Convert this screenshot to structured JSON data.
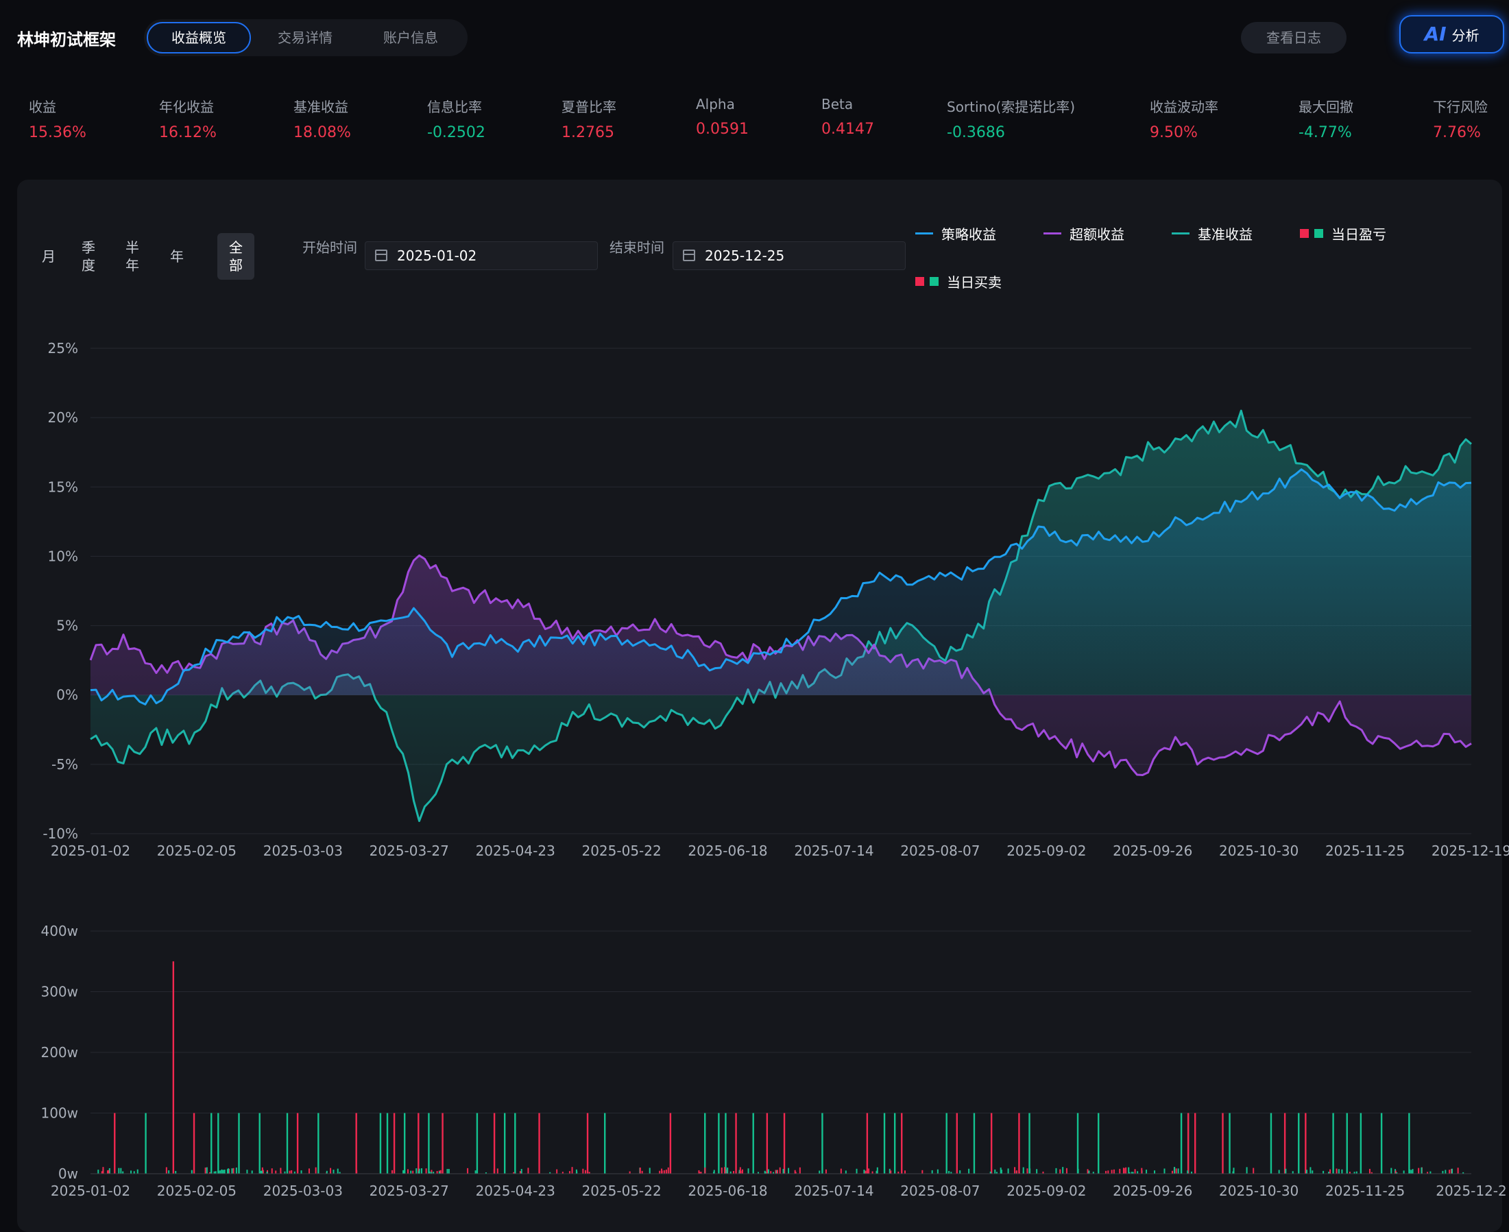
{
  "header": {
    "app_title": "林坤初试框架",
    "tabs": [
      {
        "label": "收益概览",
        "active": true
      },
      {
        "label": "交易详情",
        "active": false
      },
      {
        "label": "账户信息",
        "active": false
      }
    ],
    "log_button": "查看日志",
    "ai_button_mark": "AI",
    "ai_button_label": "分析"
  },
  "metrics": [
    {
      "label": "收益",
      "value": "15.36%",
      "tone": "pos"
    },
    {
      "label": "年化收益",
      "value": "16.12%",
      "tone": "pos"
    },
    {
      "label": "基准收益",
      "value": "18.08%",
      "tone": "pos"
    },
    {
      "label": "信息比率",
      "value": "-0.2502",
      "tone": "neg"
    },
    {
      "label": "夏普比率",
      "value": "1.2765",
      "tone": "pos"
    },
    {
      "label": "Alpha",
      "value": "0.0591",
      "tone": "pos"
    },
    {
      "label": "Beta",
      "value": "0.4147",
      "tone": "pos"
    },
    {
      "label": "Sortino(索提诺比率)",
      "value": "-0.3686",
      "tone": "neg"
    },
    {
      "label": "收益波动率",
      "value": "9.50%",
      "tone": "pos"
    },
    {
      "label": "最大回撤",
      "value": "-4.77%",
      "tone": "neg"
    },
    {
      "label": "下行风险",
      "value": "7.76%",
      "tone": "pos"
    }
  ],
  "filters": {
    "periods": [
      {
        "label": "月",
        "active": false
      },
      {
        "label": "季度",
        "active": false
      },
      {
        "label": "半年",
        "active": false
      },
      {
        "label": "年",
        "active": false
      },
      {
        "label": "全部",
        "active": true
      }
    ],
    "start_label": "开始时间",
    "start_value": "2025-01-02",
    "end_label": "结束时间",
    "end_value": "2025-12-25"
  },
  "legend": [
    {
      "name": "策略收益",
      "kind": "line",
      "color": "#1fa0f0"
    },
    {
      "name": "超额收益",
      "kind": "line",
      "color": "#a24bdc"
    },
    {
      "name": "基准收益",
      "kind": "line",
      "color": "#1cb5a8"
    },
    {
      "name": "当日盈亏",
      "kind": "squares",
      "colors": [
        "#f0284f",
        "#13c28f"
      ]
    },
    {
      "name": "当日买卖",
      "kind": "squares",
      "colors": [
        "#f0284f",
        "#13c28f"
      ]
    }
  ],
  "colors": {
    "strategy": "#1fa0f0",
    "excess": "#a24bdc",
    "benchmark": "#1cb5a8",
    "buy": "#f0284f",
    "sell": "#13c28f",
    "grid": "#262930",
    "axis_text": "#aab0ba"
  },
  "chart_data": [
    {
      "type": "line",
      "ylim": [
        -10,
        25
      ],
      "y_ticks": [
        25,
        20,
        15,
        10,
        5,
        0,
        -5,
        -10
      ],
      "y_tick_labels": [
        "25%",
        "20%",
        "15%",
        "10%",
        "5%",
        "0%",
        "-5%",
        "-10%"
      ],
      "x_tick_labels": [
        "2025-01-02",
        "2025-02-05",
        "2025-03-03",
        "2025-03-27",
        "2025-04-23",
        "2025-05-22",
        "2025-06-18",
        "2025-07-14",
        "2025-08-07",
        "2025-09-02",
        "2025-09-26",
        "2025-10-30",
        "2025-11-25",
        "2025-12-19"
      ],
      "x": [
        "2025-01-02",
        "2025-01-15",
        "2025-01-28",
        "2025-02-05",
        "2025-02-14",
        "2025-02-24",
        "2025-03-03",
        "2025-03-10",
        "2025-03-18",
        "2025-03-25",
        "2025-03-27",
        "2025-04-01",
        "2025-04-08",
        "2025-04-15",
        "2025-04-23",
        "2025-05-06",
        "2025-05-14",
        "2025-05-22",
        "2025-05-30",
        "2025-06-10",
        "2025-06-18",
        "2025-06-26",
        "2025-07-07",
        "2025-07-14",
        "2025-07-21",
        "2025-07-30",
        "2025-08-07",
        "2025-08-15",
        "2025-08-25",
        "2025-09-02",
        "2025-09-10",
        "2025-09-18",
        "2025-09-26",
        "2025-10-13",
        "2025-10-22",
        "2025-10-30",
        "2025-11-07",
        "2025-11-17",
        "2025-11-25",
        "2025-12-03",
        "2025-12-11",
        "2025-12-19",
        "2025-12-25"
      ],
      "series": [
        {
          "name": "策略收益",
          "values": [
            0,
            0,
            -0.5,
            2,
            4,
            4.5,
            5.5,
            5,
            5,
            5,
            6,
            3,
            4,
            3.5,
            4,
            4,
            4,
            4,
            3,
            2,
            2.5,
            3.5,
            5,
            7,
            8.5,
            8,
            8.5,
            9,
            10.5,
            12,
            11,
            11.5,
            11,
            12.5,
            13,
            14,
            15,
            16,
            14.5,
            14,
            13.5,
            15,
            15.3
          ]
        },
        {
          "name": "超额收益",
          "values": [
            3,
            4,
            2,
            2,
            3.5,
            4,
            5.5,
            3,
            4,
            5,
            10.5,
            7.5,
            7,
            6.5,
            5,
            4.5,
            4.5,
            5,
            4.5,
            3.5,
            3,
            3.5,
            4,
            4,
            3,
            2.5,
            2.5,
            1,
            -2,
            -3,
            -4,
            -4.5,
            -5.5,
            -3.5,
            -5,
            -4.5,
            -3,
            -2,
            -1,
            -3,
            -4,
            -3,
            -3.5
          ]
        },
        {
          "name": "基准收益",
          "values": [
            -3,
            -4.5,
            -3,
            -3,
            0,
            0.5,
            0.5,
            0,
            1.5,
            -1,
            -8.5,
            -5,
            -4,
            -4,
            -3,
            -1,
            -2,
            -2,
            -1.5,
            -2,
            0,
            0.5,
            1,
            2,
            4,
            5,
            3,
            4.5,
            9.5,
            14.5,
            15,
            16,
            17.5,
            18,
            19,
            20,
            18,
            17,
            14,
            15,
            16,
            16.5,
            18.1
          ]
        }
      ]
    },
    {
      "type": "bar",
      "ylim": [
        0,
        400
      ],
      "y_ticks": [
        0,
        100,
        200,
        300,
        400
      ],
      "y_tick_labels": [
        "0w",
        "100w",
        "200w",
        "300w",
        "400w"
      ],
      "x_tick_labels": [
        "2025-01-02",
        "2025-02-05",
        "2025-03-03",
        "2025-03-27",
        "2025-04-23",
        "2025-05-22",
        "2025-06-18",
        "2025-07-14",
        "2025-08-07",
        "2025-09-02",
        "2025-09-26",
        "2025-10-30",
        "2025-11-25",
        "2025-12-2"
      ],
      "series": [
        {
          "name": "买入",
          "points": [
            [
              0.08,
              100
            ],
            [
              0.175,
              100
            ],
            [
              0.185,
              100
            ],
            [
              0.215,
              100
            ],
            [
              0.245,
              100
            ],
            [
              0.285,
              100
            ],
            [
              0.33,
              100
            ],
            [
              0.42,
              100
            ],
            [
              0.43,
              100
            ],
            [
              0.455,
              100
            ],
            [
              0.49,
              100
            ],
            [
              0.56,
              100
            ],
            [
              0.6,
              100
            ],
            [
              0.615,
              100
            ],
            [
              0.745,
              100
            ],
            [
              0.89,
              100
            ],
            [
              0.91,
              100
            ],
            [
              0.92,
              100
            ],
            [
              0.96,
              100
            ],
            [
              1.06,
              100
            ],
            [
              1.15,
              100
            ],
            [
              1.165,
              100
            ],
            [
              1.24,
              100
            ],
            [
              1.28,
              100
            ],
            [
              1.36,
              100
            ],
            [
              1.43,
              100
            ],
            [
              1.46,
              100
            ],
            [
              1.58,
              100
            ],
            [
              1.59,
              100
            ],
            [
              1.65,
              100
            ],
            [
              1.71,
              100
            ],
            [
              1.75,
              100
            ],
            [
              1.8,
              100
            ],
            [
              1.82,
              100
            ],
            [
              1.84,
              100
            ],
            [
              1.87,
              100
            ],
            [
              1.91,
              100
            ]
          ]
        },
        {
          "name": "卖出",
          "points": [
            [
              0.035,
              100
            ],
            [
              0.12,
              350
            ],
            [
              0.15,
              100
            ],
            [
              0.3,
              100
            ],
            [
              0.385,
              100
            ],
            [
              0.44,
              100
            ],
            [
              0.475,
              100
            ],
            [
              0.51,
              100
            ],
            [
              0.585,
              100
            ],
            [
              0.65,
              100
            ],
            [
              0.72,
              100
            ],
            [
              0.84,
              100
            ],
            [
              0.935,
              100
            ],
            [
              0.98,
              100
            ],
            [
              1.005,
              100
            ],
            [
              1.125,
              100
            ],
            [
              1.175,
              100
            ],
            [
              1.255,
              100
            ],
            [
              1.305,
              100
            ],
            [
              1.345,
              100
            ],
            [
              1.59,
              100
            ],
            [
              1.6,
              100
            ],
            [
              1.64,
              100
            ],
            [
              1.73,
              100
            ],
            [
              1.76,
              100
            ]
          ]
        }
      ]
    }
  ]
}
